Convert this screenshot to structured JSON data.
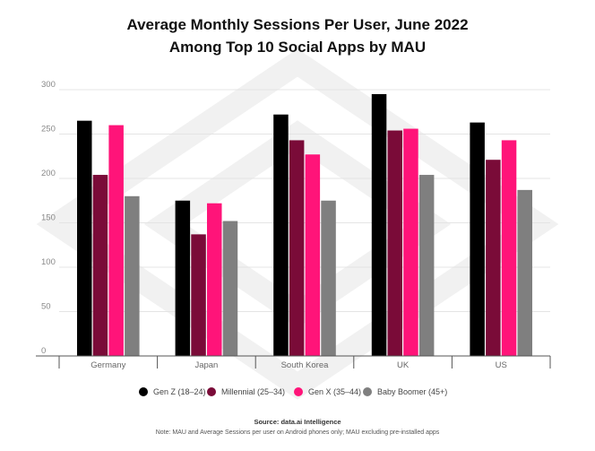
{
  "chart_data": {
    "type": "bar",
    "title": "Average Monthly Sessions Per User, June 2022",
    "subtitle": "Among Top 10 Social Apps by MAU",
    "xlabel": "",
    "ylabel": "",
    "categories": [
      "Germany",
      "Japan",
      "South Korea",
      "UK",
      "US"
    ],
    "ylim": [
      0,
      300
    ],
    "yticks": [
      0,
      50,
      100,
      150,
      200,
      250,
      300
    ],
    "grid": true,
    "legend_position": "bottom",
    "series": [
      {
        "name": "Gen Z (18–24)",
        "color": "#000000",
        "values": [
          265,
          175,
          272,
          295,
          263
        ]
      },
      {
        "name": "Millennial (25–34)",
        "color": "#7a0b38",
        "values": [
          204,
          137,
          243,
          254,
          221
        ]
      },
      {
        "name": "Gen X (35–44)",
        "color": "#ff1479",
        "values": [
          260,
          172,
          227,
          256,
          243
        ]
      },
      {
        "name": "Baby Boomer (45+)",
        "color": "#7f7f7f",
        "values": [
          180,
          152,
          175,
          204,
          187
        ]
      }
    ],
    "source": "Source: data.ai Intelligence",
    "note": "Note: MAU and Average Sessions per user on Android phones only; MAU excluding pre-installed apps"
  }
}
